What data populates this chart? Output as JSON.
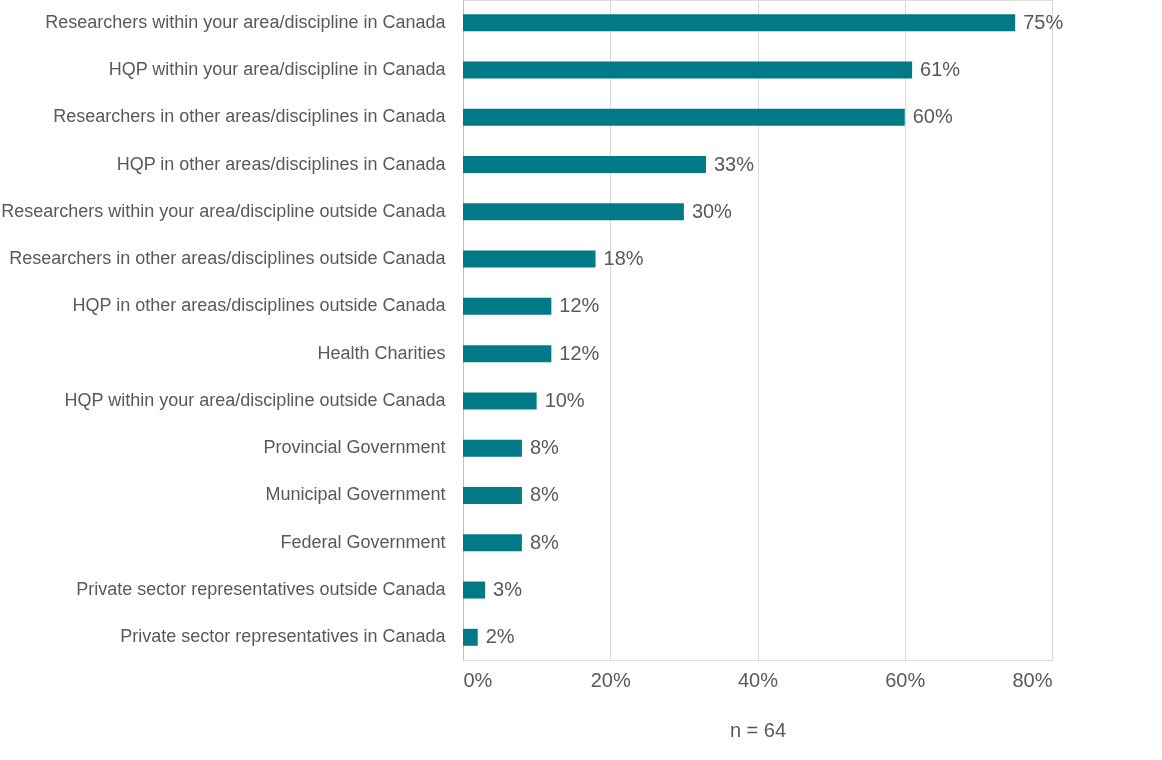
{
  "chart_data": {
    "type": "bar",
    "orientation": "horizontal",
    "categories": [
      "Researchers within your area/discipline in Canada",
      "HQP within your area/discipline in Canada",
      "Researchers in other areas/disciplines in Canada",
      "HQP in other areas/disciplines in Canada",
      "Researchers within your area/discipline outside Canada",
      "Researchers in other areas/disciplines outside Canada",
      "HQP in other areas/disciplines outside Canada",
      "Health Charities",
      "HQP within your area/discipline outside Canada",
      "Provincial Government",
      "Municipal Government",
      "Federal Government",
      "Private sector representatives outside Canada",
      "Private sector representatives in Canada"
    ],
    "values": [
      75,
      61,
      60,
      33,
      30,
      18,
      12,
      12,
      10,
      8,
      8,
      8,
      3,
      2
    ],
    "value_labels": [
      "75%",
      "61%",
      "60%",
      "33%",
      "30%",
      "18%",
      "12%",
      "12%",
      "10%",
      "8%",
      "8%",
      "8%",
      "3%",
      "2%"
    ],
    "color": "#007a87",
    "xlim": [
      0,
      80
    ],
    "xticks": [
      {
        "value": 0,
        "label": "0%"
      },
      {
        "value": 20,
        "label": "20%"
      },
      {
        "value": 40,
        "label": "40%"
      },
      {
        "value": 60,
        "label": "60%"
      },
      {
        "value": 80,
        "label": "80%"
      }
    ],
    "grid": "x",
    "annotations": [
      "n = 64"
    ]
  }
}
